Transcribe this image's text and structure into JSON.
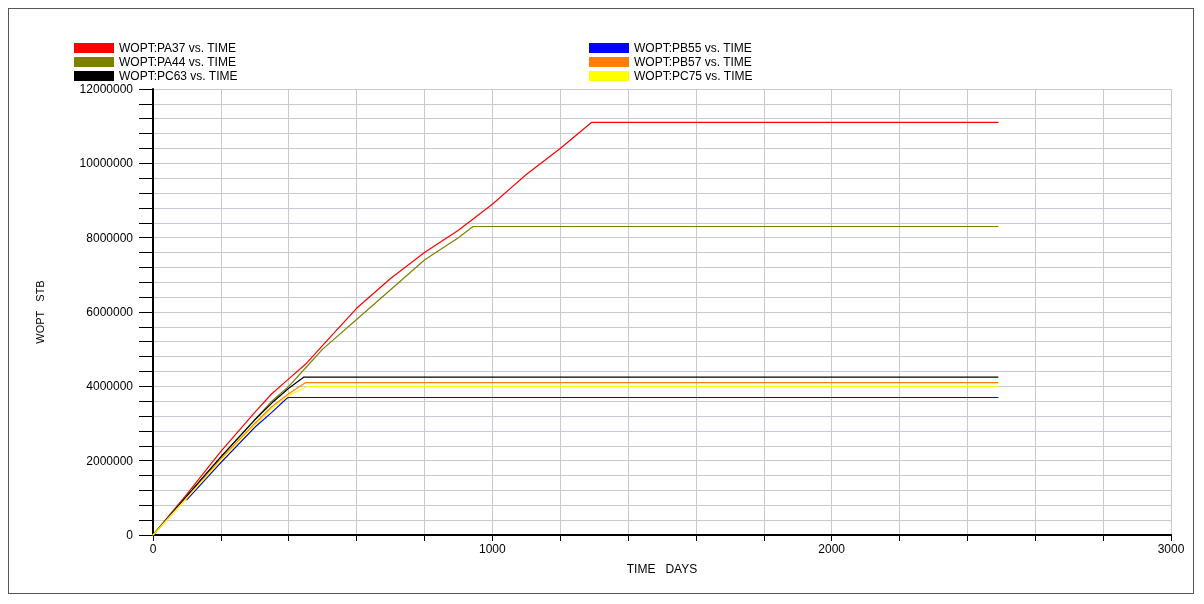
{
  "chart_data": {
    "type": "line",
    "xlabel": "TIME   DAYS",
    "ylabel": "WOPT   STB",
    "xlim": [
      0,
      3000
    ],
    "ylim": [
      0,
      12000000
    ],
    "xticks": [
      0,
      {
        "value": 200,
        "label": null
      },
      {
        "value": 400,
        "label": null
      },
      {
        "value": 600,
        "label": null
      },
      {
        "value": 800,
        "label": null
      },
      1000,
      {
        "value": 1200,
        "label": null
      },
      {
        "value": 1400,
        "label": null
      },
      {
        "value": 1600,
        "label": null
      },
      {
        "value": 1800,
        "label": null
      },
      2000,
      {
        "value": 2200,
        "label": null
      },
      {
        "value": 2400,
        "label": null
      },
      {
        "value": 2600,
        "label": null
      },
      {
        "value": 2800,
        "label": null
      },
      3000
    ],
    "yticks": [
      0,
      {
        "value": 400000,
        "label": null
      },
      {
        "value": 800000,
        "label": null
      },
      {
        "value": 1200000,
        "label": null
      },
      {
        "value": 1600000,
        "label": null
      },
      2000000,
      {
        "value": 2400000,
        "label": null
      },
      {
        "value": 2800000,
        "label": null
      },
      {
        "value": 3200000,
        "label": null
      },
      {
        "value": 3600000,
        "label": null
      },
      4000000,
      {
        "value": 4400000,
        "label": null
      },
      {
        "value": 4800000,
        "label": null
      },
      {
        "value": 5200000,
        "label": null
      },
      {
        "value": 5600000,
        "label": null
      },
      6000000,
      {
        "value": 6400000,
        "label": null
      },
      {
        "value": 6800000,
        "label": null
      },
      {
        "value": 7200000,
        "label": null
      },
      {
        "value": 7600000,
        "label": null
      },
      8000000,
      {
        "value": 8400000,
        "label": null
      },
      {
        "value": 8800000,
        "label": null
      },
      {
        "value": 9200000,
        "label": null
      },
      {
        "value": 9600000,
        "label": null
      },
      10000000,
      {
        "value": 10400000,
        "label": null
      },
      {
        "value": 10800000,
        "label": null
      },
      {
        "value": 11200000,
        "label": null
      },
      {
        "value": 11600000,
        "label": null
      },
      12000000
    ],
    "grid": true,
    "legend": "top",
    "marker": "none",
    "line_style": "solid",
    "series": [
      {
        "name": "WOPT:PA37 vs. TIME",
        "color": "#ff0000",
        "x": [
          0,
          100,
          200,
          300,
          350,
          400,
          450,
          500,
          600,
          700,
          800,
          900,
          1000,
          1100,
          1200,
          1292,
          2490
        ],
        "values": [
          0,
          1100000,
          2250000,
          3300000,
          3800000,
          4200000,
          4600000,
          5100000,
          6100000,
          6900000,
          7600000,
          8200000,
          8900000,
          9700000,
          10400000,
          11100000,
          11100000
        ]
      },
      {
        "name": "WOPT:PB55 vs. TIME",
        "color": "#0000ff",
        "x": [
          100,
          200,
          300,
          350,
          397,
          2490
        ],
        "values": [
          950000,
          1950000,
          2900000,
          3300000,
          3700000,
          3700000
        ]
      },
      {
        "name": "WOPT:PA44 vs. TIME",
        "color": "#808000",
        "x": [
          0,
          100,
          200,
          300,
          350,
          400,
          450,
          500,
          600,
          700,
          800,
          900,
          943,
          2490
        ],
        "values": [
          0,
          1050000,
          2100000,
          3100000,
          3600000,
          4000000,
          4500000,
          5000000,
          5800000,
          6600000,
          7400000,
          8000000,
          8300000,
          8300000
        ]
      },
      {
        "name": "WOPT:PB57 vs. TIME",
        "color": "#ff8000",
        "x": [
          0,
          100,
          200,
          300,
          350,
          400,
          450,
          2490
        ],
        "values": [
          0,
          1000000,
          2050000,
          3000000,
          3450000,
          3800000,
          4100000,
          4100000
        ]
      },
      {
        "name": "WOPT:PC63 vs. TIME",
        "color": "#000000",
        "x": [
          0,
          100,
          200,
          300,
          350,
          400,
          445,
          2490
        ],
        "values": [
          0,
          1050000,
          2100000,
          3100000,
          3550000,
          3950000,
          4250000,
          4250000
        ]
      },
      {
        "name": "WOPT:PC75 vs. TIME",
        "color": "#ffff00",
        "x": [
          0,
          100,
          200,
          300,
          350,
          400,
          455,
          2490
        ],
        "values": [
          0,
          1000000,
          2000000,
          2950000,
          3400000,
          3750000,
          4000000,
          4000000
        ]
      }
    ]
  }
}
